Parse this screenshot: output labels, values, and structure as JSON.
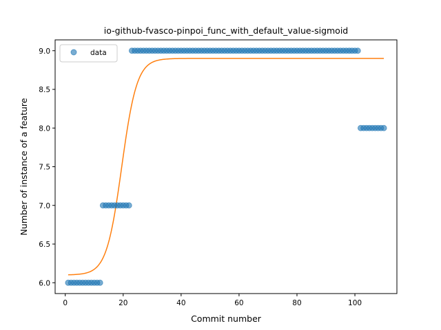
{
  "chart_data": {
    "type": "scatter",
    "title": "io-github-fvasco-pinpoi_func_with_default_value-sigmoid",
    "xlabel": "Commit number",
    "ylabel": "Number of instance of a feature",
    "xlim": [
      -3.5,
      114.5
    ],
    "ylim": [
      5.86,
      9.14
    ],
    "xticks": [
      0,
      20,
      40,
      60,
      80,
      100
    ],
    "yticks": [
      6.0,
      6.5,
      7.0,
      7.5,
      8.0,
      8.5,
      9.0
    ],
    "ytick_labels": [
      "6.0",
      "6.5",
      "7.0",
      "7.5",
      "8.0",
      "8.5",
      "9.0"
    ],
    "legend_position": "upper left",
    "series": [
      {
        "name": "data",
        "kind": "points",
        "color": "#1f77b4",
        "segments": [
          {
            "x_from": 1,
            "x_to": 12,
            "y": 6.0
          },
          {
            "x_from": 13,
            "x_to": 22,
            "y": 7.0
          },
          {
            "x_from": 23,
            "x_to": 101,
            "y": 9.0
          },
          {
            "x_from": 102,
            "x_to": 110,
            "y": 8.0
          }
        ]
      },
      {
        "kind": "fitted sigmoid curve",
        "color": "#ff7f0e",
        "x_range": [
          1,
          110
        ],
        "base": 6.1,
        "amplitude": 2.8,
        "midpoint": 19.5,
        "steepness": 0.38
      }
    ]
  }
}
